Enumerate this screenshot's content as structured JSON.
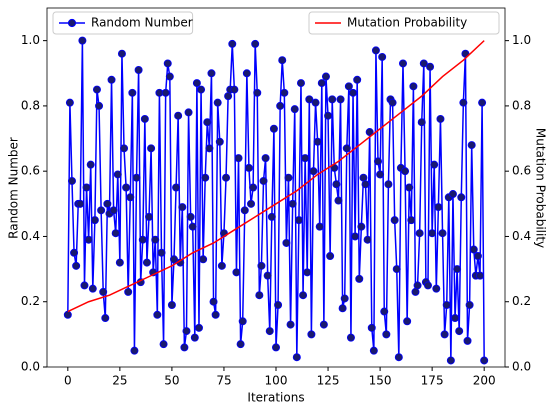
{
  "chart_data": {
    "type": "line",
    "xlabel": "Iterations",
    "ylabel": "Random Number",
    "y2label": "Mutation Probability",
    "xlim": [
      -10,
      210
    ],
    "ylim": [
      0,
      1.1
    ],
    "y2lim": [
      0,
      1.1
    ],
    "xticks": [
      0,
      25,
      50,
      75,
      100,
      125,
      150,
      175,
      200
    ],
    "yticks": [
      {
        "value": 0,
        "label": "0.0"
      },
      0.2,
      0.4,
      0.6,
      0.8,
      {
        "value": 1,
        "label": "1.0"
      }
    ],
    "y2ticks": [
      {
        "value": 0,
        "label": "0.0"
      },
      0.2,
      0.4,
      0.6,
      0.8,
      {
        "value": 1,
        "label": "1.0"
      }
    ],
    "series": [
      {
        "name": "Random Number",
        "color": "#0000ff",
        "marker_color": "#191970",
        "legend": "upper left",
        "x": [
          0,
          1,
          2,
          3,
          4,
          5,
          6,
          7,
          8,
          9,
          10,
          11,
          12,
          13,
          14,
          15,
          16,
          17,
          18,
          19,
          20,
          21,
          22,
          23,
          24,
          25,
          26,
          27,
          28,
          29,
          30,
          31,
          32,
          33,
          34,
          35,
          36,
          37,
          38,
          39,
          40,
          41,
          42,
          43,
          44,
          45,
          46,
          47,
          48,
          49,
          50,
          51,
          52,
          53,
          54,
          55,
          56,
          57,
          58,
          59,
          60,
          61,
          62,
          63,
          64,
          65,
          66,
          67,
          68,
          69,
          70,
          71,
          72,
          73,
          74,
          75,
          76,
          77,
          78,
          79,
          80,
          81,
          82,
          83,
          84,
          85,
          86,
          87,
          88,
          89,
          90,
          91,
          92,
          93,
          94,
          95,
          96,
          97,
          98,
          99,
          100,
          101,
          102,
          103,
          104,
          105,
          106,
          107,
          108,
          109,
          110,
          111,
          112,
          113,
          114,
          115,
          116,
          117,
          118,
          119,
          120,
          121,
          122,
          123,
          124,
          125,
          126,
          127,
          128,
          129,
          130,
          131,
          132,
          133,
          134,
          135,
          136,
          137,
          138,
          139,
          140,
          141,
          142,
          143,
          144,
          145,
          146,
          147,
          148,
          149,
          150,
          151,
          152,
          153,
          154,
          155,
          156,
          157,
          158,
          159,
          160,
          161,
          162,
          163,
          164,
          165,
          166,
          167,
          168,
          169,
          170,
          171,
          172,
          173,
          174,
          175,
          176,
          177,
          178,
          179,
          180,
          181,
          182,
          183,
          184,
          185,
          186,
          187,
          188,
          189,
          190,
          191,
          192,
          193,
          194,
          195,
          196,
          197,
          198,
          199,
          200
        ],
        "values": [
          0.16,
          0.81,
          0.57,
          0.35,
          0.31,
          0.5,
          0.5,
          1.0,
          0.25,
          0.55,
          0.39,
          0.62,
          0.24,
          0.45,
          0.85,
          0.8,
          0.48,
          0.23,
          0.15,
          0.5,
          0.47,
          0.88,
          0.48,
          0.41,
          0.59,
          0.32,
          0.96,
          0.67,
          0.55,
          0.23,
          0.52,
          0.84,
          0.05,
          0.58,
          0.91,
          0.26,
          0.39,
          0.76,
          0.32,
          0.46,
          0.67,
          0.29,
          0.39,
          0.16,
          0.84,
          0.35,
          0.07,
          0.84,
          0.93,
          0.89,
          0.19,
          0.33,
          0.55,
          0.77,
          0.32,
          0.49,
          0.06,
          0.11,
          0.78,
          0.46,
          0.43,
          0.09,
          0.87,
          0.12,
          0.85,
          0.33,
          0.58,
          0.75,
          0.67,
          0.9,
          0.2,
          0.16,
          0.81,
          0.69,
          0.31,
          0.41,
          0.58,
          0.83,
          0.85,
          0.99,
          0.85,
          0.29,
          0.64,
          0.07,
          0.14,
          0.48,
          0.9,
          0.61,
          0.5,
          0.55,
          0.99,
          0.84,
          0.22,
          0.31,
          0.57,
          0.64,
          0.28,
          0.11,
          0.46,
          0.73,
          0.06,
          0.19,
          0.8,
          0.94,
          0.84,
          0.38,
          0.58,
          0.13,
          0.5,
          0.79,
          0.03,
          0.45,
          0.87,
          0.22,
          0.64,
          0.29,
          0.82,
          0.1,
          0.6,
          0.81,
          0.69,
          0.43,
          0.87,
          0.13,
          0.89,
          0.77,
          0.34,
          0.82,
          0.61,
          0.56,
          0.51,
          0.82,
          0.18,
          0.21,
          0.67,
          0.86,
          0.09,
          0.84,
          0.4,
          0.88,
          0.27,
          0.43,
          0.58,
          0.56,
          0.39,
          0.72,
          0.12,
          0.05,
          0.97,
          0.63,
          0.59,
          0.95,
          0.17,
          0.1,
          0.56,
          0.82,
          0.81,
          0.45,
          0.3,
          0.03,
          0.61,
          0.93,
          0.6,
          0.14,
          0.55,
          0.45,
          0.86,
          0.23,
          0.25,
          0.41,
          0.75,
          0.93,
          0.26,
          0.25,
          0.92,
          0.41,
          0.62,
          0.24,
          0.49,
          0.76,
          0.41,
          0.1,
          0.19,
          0.52,
          0.02,
          0.53,
          0.15,
          0.3,
          0.11,
          0.52,
          0.81,
          0.96,
          0.08,
          0.19,
          0.68,
          0.36,
          0.28,
          0.34,
          0.28,
          0.81,
          0.02
        ]
      },
      {
        "name": "Mutation Probability",
        "color": "#ff0000",
        "axis": "y2",
        "legend": "upper right",
        "x": [
          0,
          10,
          20,
          30,
          40,
          50,
          60,
          70,
          80,
          90,
          100,
          110,
          120,
          130,
          140,
          150,
          160,
          170,
          180,
          190,
          200
        ],
        "values": [
          0.17,
          0.2,
          0.22,
          0.25,
          0.28,
          0.31,
          0.35,
          0.38,
          0.42,
          0.46,
          0.5,
          0.54,
          0.59,
          0.63,
          0.68,
          0.73,
          0.78,
          0.83,
          0.89,
          0.94,
          1.0
        ]
      }
    ]
  }
}
